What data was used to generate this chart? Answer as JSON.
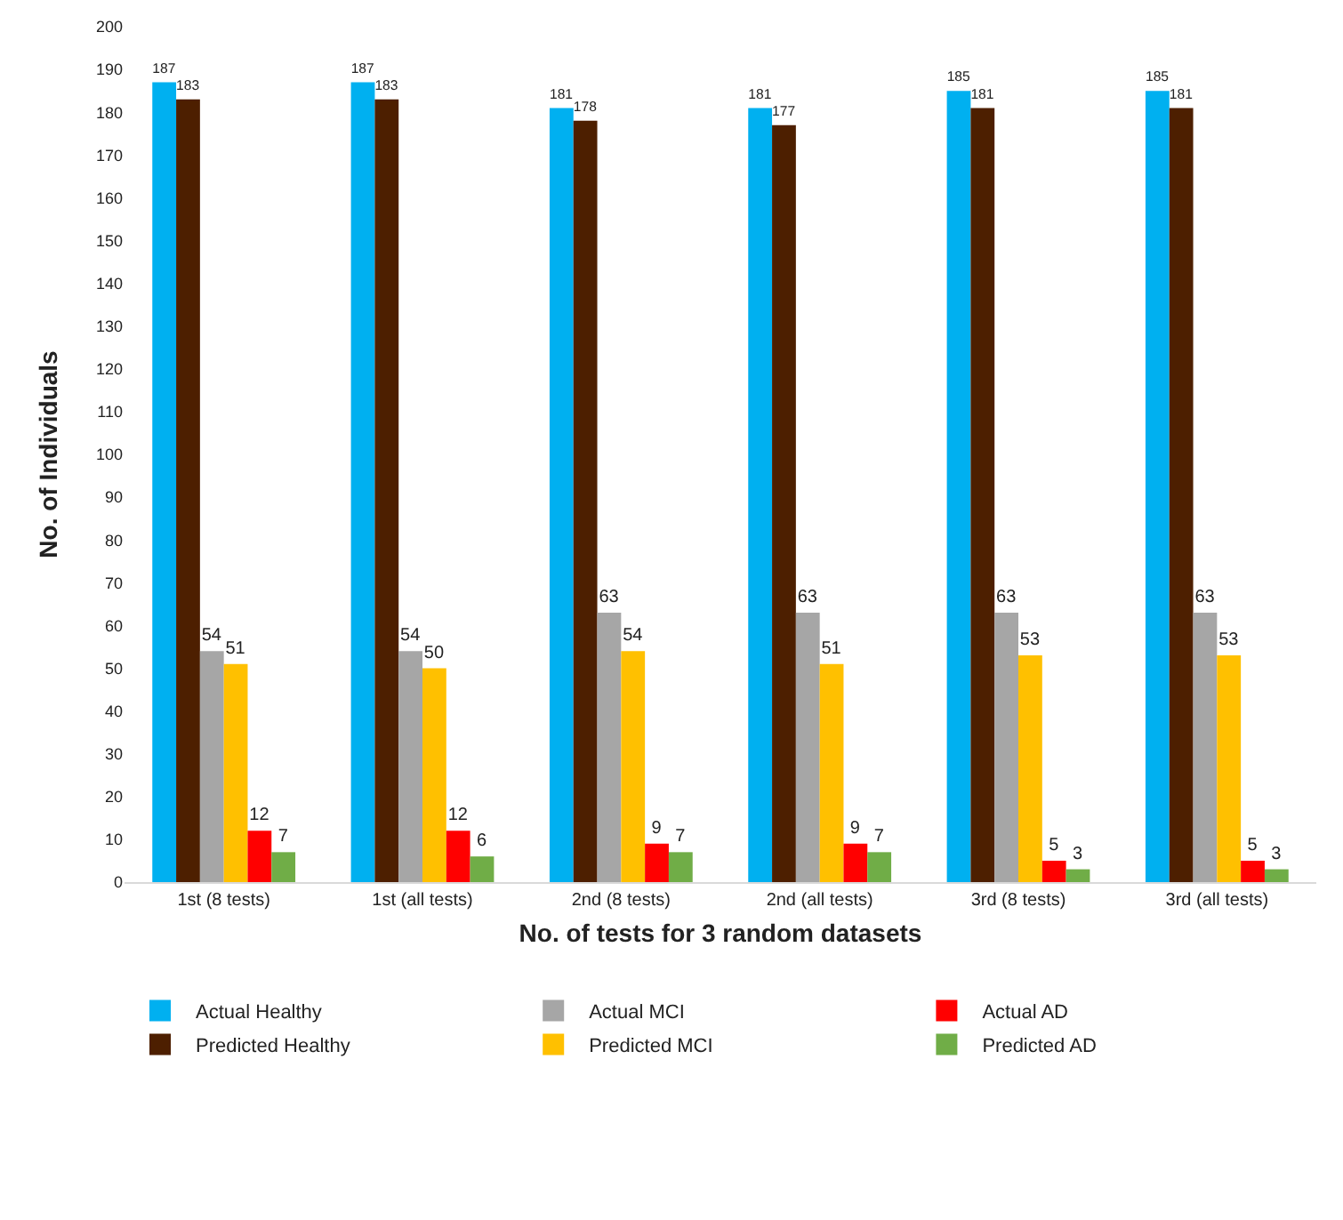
{
  "chart_data": {
    "type": "bar",
    "xlabel": "No. of tests for 3 random datasets",
    "ylabel": "No. of Individuals",
    "categories": [
      "1st (8 tests)",
      "1st (all tests)",
      "2nd (8 tests)",
      "2nd (all tests)",
      "3rd (8 tests)",
      "3rd (all tests)"
    ],
    "series": [
      {
        "name": "Actual Healthy",
        "color": "#00b0f0",
        "values": [
          187,
          187,
          181,
          181,
          185,
          185
        ]
      },
      {
        "name": "Predicted Healthy",
        "color": "#4d1f00",
        "values": [
          183,
          183,
          178,
          177,
          181,
          181
        ]
      },
      {
        "name": "Actual MCI",
        "color": "#a6a6a6",
        "values": [
          54,
          54,
          63,
          63,
          63,
          63
        ]
      },
      {
        "name": "Predicted MCI",
        "color": "#ffc000",
        "values": [
          51,
          50,
          54,
          51,
          53,
          53
        ]
      },
      {
        "name": "Actual AD",
        "color": "#ff0000",
        "values": [
          12,
          12,
          9,
          9,
          5,
          5
        ]
      },
      {
        "name": "Predicted AD",
        "color": "#70ad47",
        "values": [
          7,
          6,
          7,
          7,
          3,
          3
        ]
      }
    ],
    "ylim": [
      0,
      200
    ],
    "yticks": [
      0,
      10,
      20,
      30,
      40,
      50,
      60,
      70,
      80,
      90,
      100,
      110,
      120,
      130,
      140,
      150,
      160,
      170,
      180,
      190,
      200
    ],
    "grid": false,
    "legend": "bottom",
    "data_labels": true
  }
}
